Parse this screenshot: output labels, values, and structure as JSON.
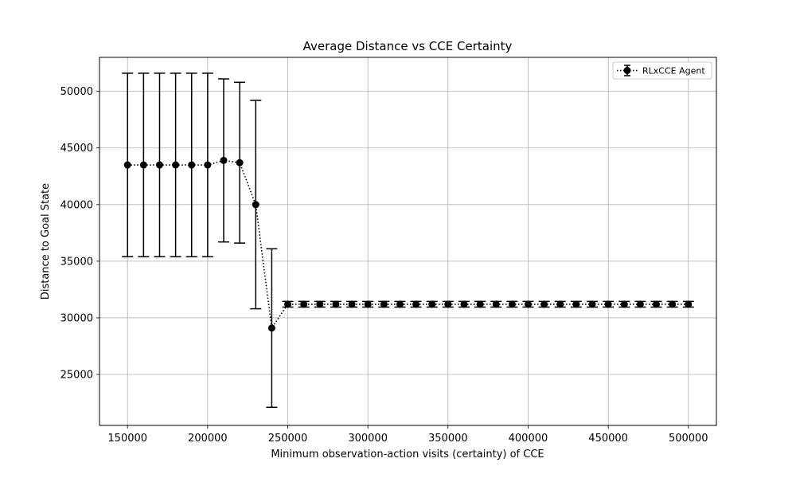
{
  "chart_data": {
    "type": "scatter",
    "title": "Average Distance vs CCE Certainty",
    "xlabel": "Minimum observation-action visits (certainty) of CCE",
    "ylabel": "Distance to Goal State",
    "xlim": [
      132500,
      517500
    ],
    "ylim": [
      20500,
      53000
    ],
    "x_ticks": [
      150000,
      200000,
      250000,
      300000,
      350000,
      400000,
      450000,
      500000
    ],
    "y_ticks": [
      25000,
      30000,
      35000,
      40000,
      45000,
      50000
    ],
    "grid": true,
    "legend_position": "top-right",
    "series": [
      {
        "name": "RLxCCE Agent",
        "color": "#000000",
        "line_style": "dotted",
        "marker": "circle",
        "error_bars": true,
        "x": [
          150000,
          160000,
          170000,
          180000,
          190000,
          200000,
          210000,
          220000,
          230000,
          240000,
          250000,
          260000,
          270000,
          280000,
          290000,
          300000,
          310000,
          320000,
          330000,
          340000,
          350000,
          360000,
          370000,
          380000,
          390000,
          400000,
          410000,
          420000,
          430000,
          440000,
          450000,
          460000,
          470000,
          480000,
          490000,
          500000
        ],
        "y": [
          43500,
          43500,
          43500,
          43500,
          43500,
          43500,
          43900,
          43700,
          40000,
          29100,
          31200,
          31200,
          31200,
          31200,
          31200,
          31200,
          31200,
          31200,
          31200,
          31200,
          31200,
          31200,
          31200,
          31200,
          31200,
          31200,
          31200,
          31200,
          31200,
          31200,
          31200,
          31200,
          31200,
          31200,
          31200,
          31200
        ],
        "y_err": [
          8100,
          8100,
          8100,
          8100,
          8100,
          8100,
          7200,
          7100,
          9200,
          7000,
          250,
          250,
          250,
          250,
          250,
          250,
          250,
          250,
          250,
          250,
          250,
          250,
          250,
          250,
          250,
          250,
          250,
          250,
          250,
          250,
          250,
          250,
          250,
          250,
          250,
          250
        ]
      }
    ]
  }
}
